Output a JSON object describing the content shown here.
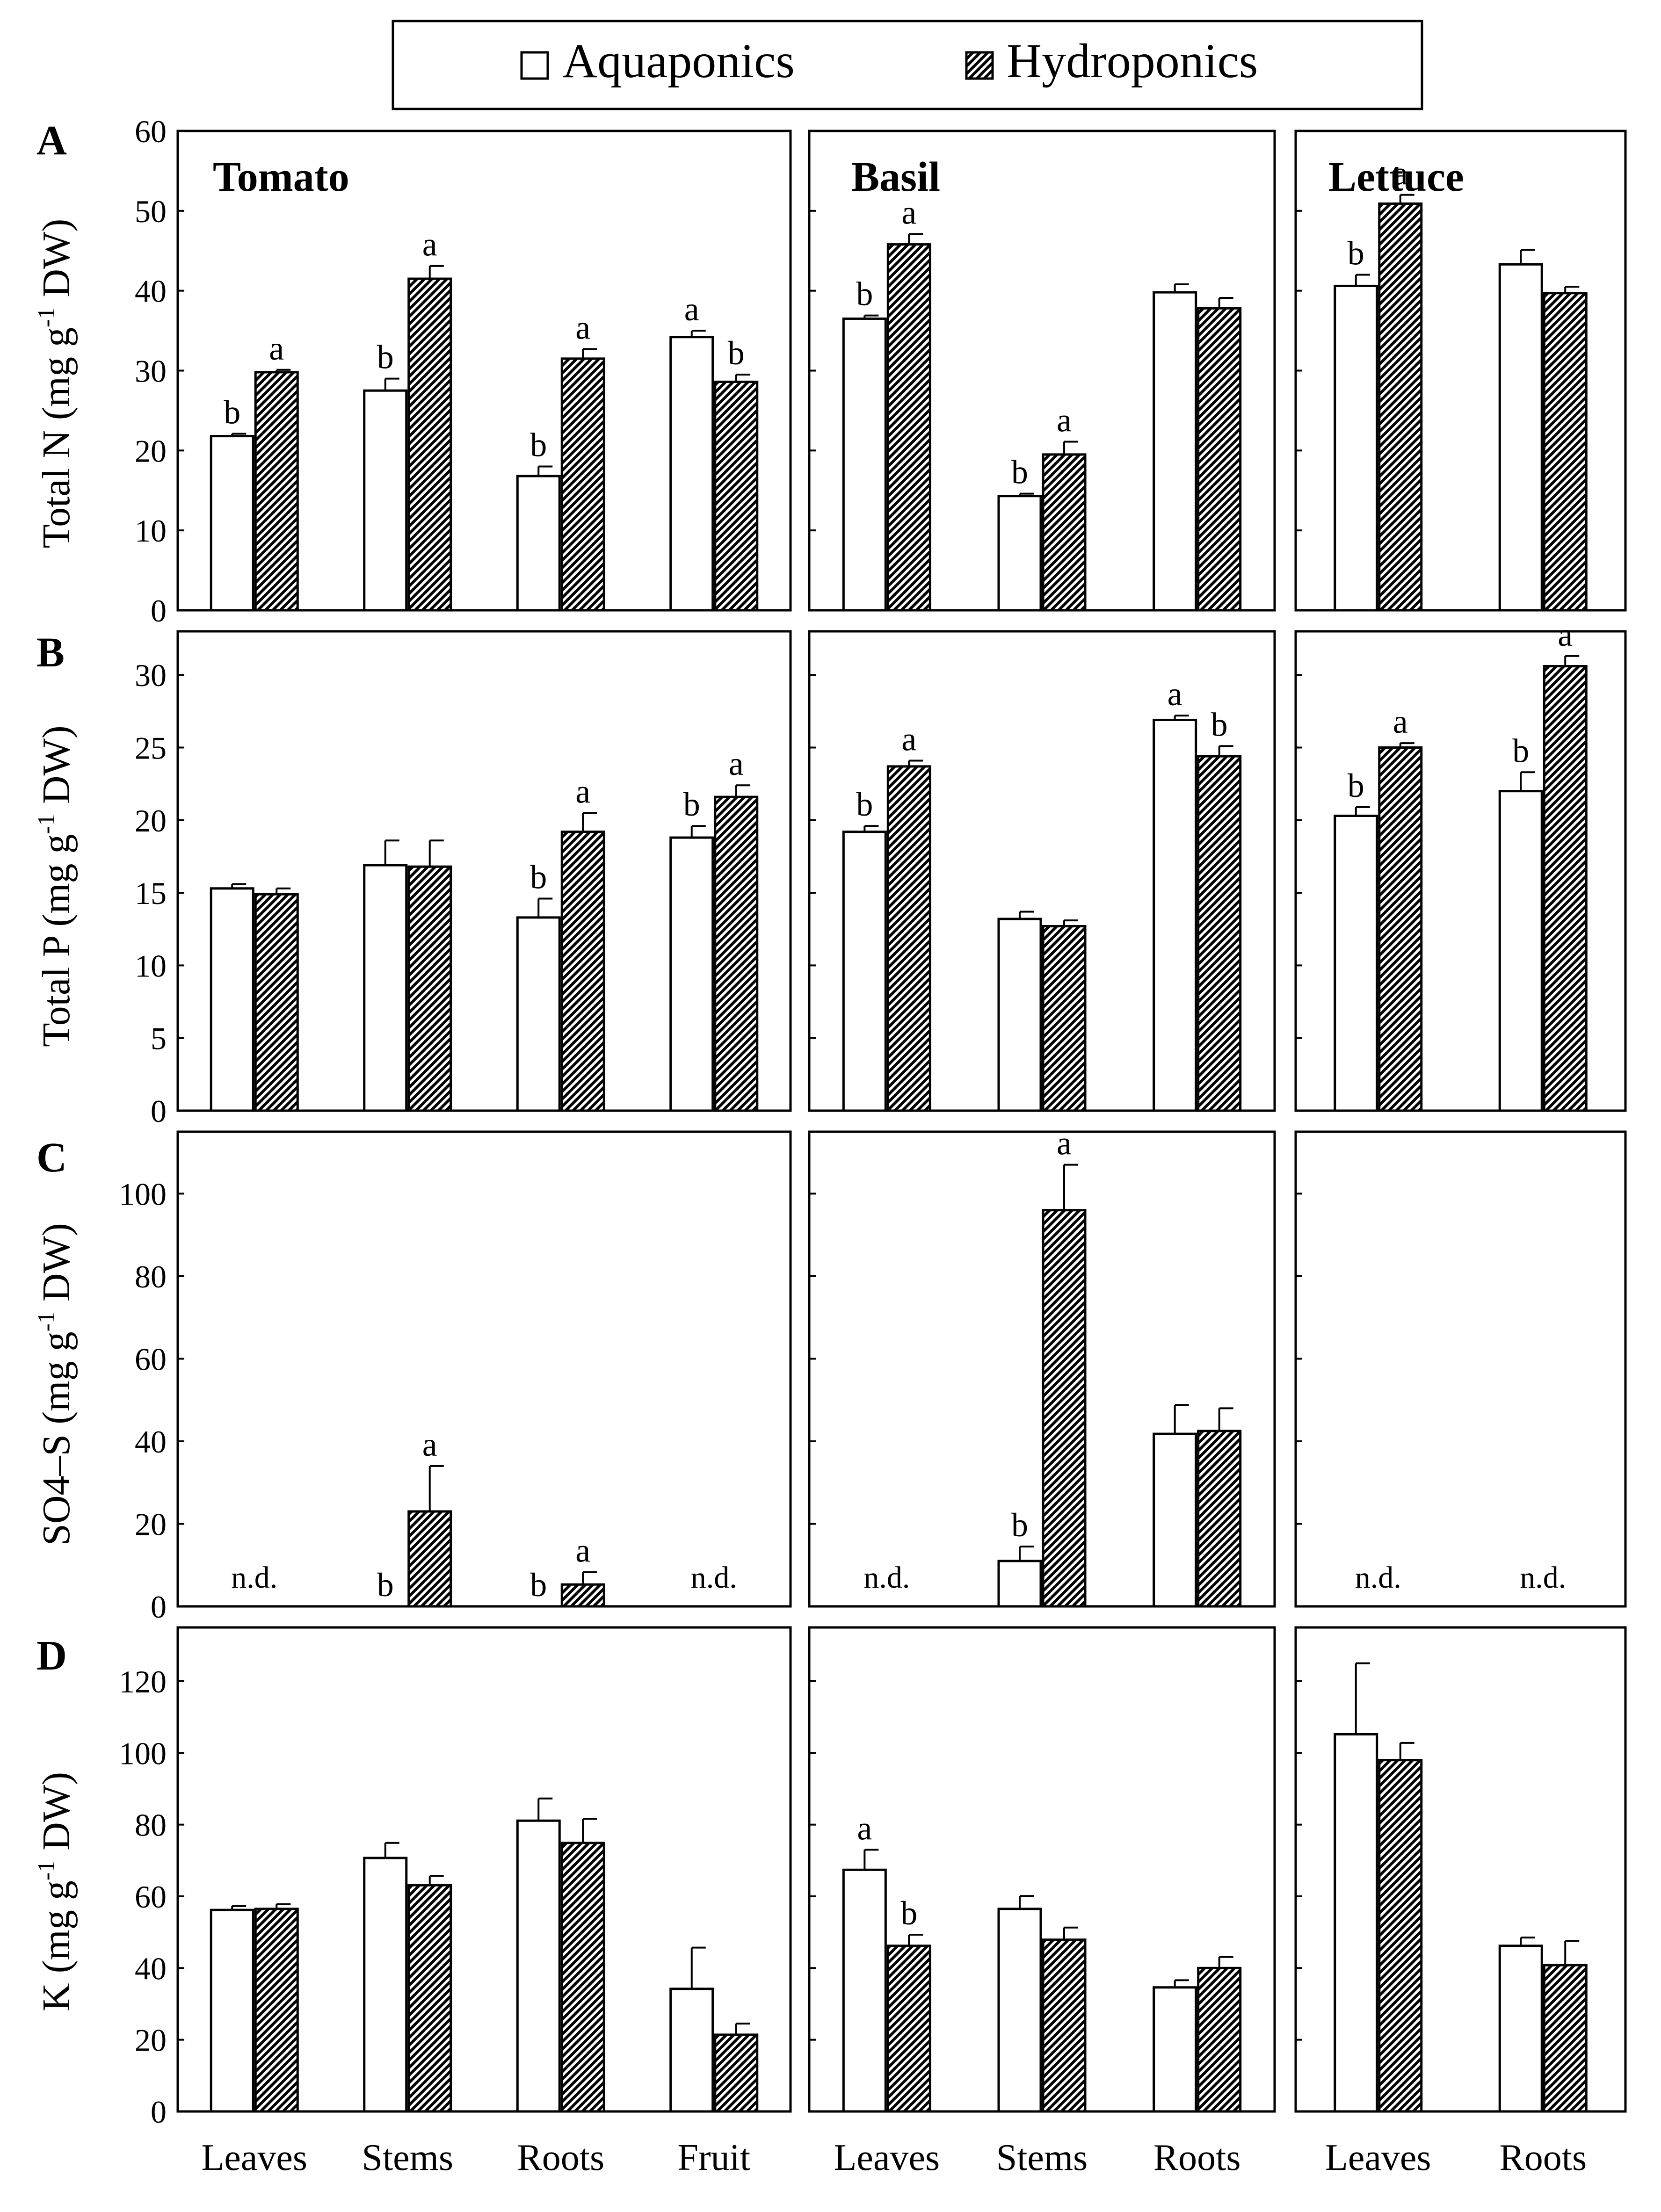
{
  "legend": {
    "series": [
      {
        "name": "Aquaponics",
        "pattern": "open"
      },
      {
        "name": "Hydroponics",
        "pattern": "hatched"
      }
    ]
  },
  "rows": [
    {
      "letter": "A",
      "ylabel": "Total N (mg g-1 DW)",
      "ylabel_main": "Total N (mg g",
      "ylabel_sup": "-1",
      "ylabel_tail": " DW)",
      "ylim": [
        0,
        60
      ],
      "ticks": [
        0,
        10,
        20,
        30,
        40,
        50,
        60
      ]
    },
    {
      "letter": "B",
      "ylabel": "Total P (mg g-1 DW)",
      "ylabel_main": "Total P (mg g",
      "ylabel_sup": "-1",
      "ylabel_tail": " DW)",
      "ylim": [
        0,
        33
      ],
      "ticks": [
        0,
        5,
        10,
        15,
        20,
        25,
        30
      ]
    },
    {
      "letter": "C",
      "ylabel": "SO4–S (mg g-1 DW)",
      "ylabel_main": "SO4–S (mg g",
      "ylabel_sup": "-1",
      "ylabel_tail": " DW)",
      "ylim": [
        0,
        115
      ],
      "ticks": [
        0,
        20,
        40,
        60,
        80,
        100
      ]
    },
    {
      "letter": "D",
      "ylabel": "K (mg g-1 DW)",
      "ylabel_main": "K (mg g",
      "ylabel_sup": "-1",
      "ylabel_tail": " DW)",
      "ylim": [
        0,
        135
      ],
      "ticks": [
        0,
        20,
        40,
        60,
        80,
        100,
        120
      ]
    }
  ],
  "crops": [
    {
      "name": "Tomato",
      "categories": [
        "Leaves",
        "Stems",
        "Roots",
        "Fruit"
      ]
    },
    {
      "name": "Basil",
      "categories": [
        "Leaves",
        "Stems",
        "Roots"
      ]
    },
    {
      "name": "Lettuce",
      "categories": [
        "Leaves",
        "Roots"
      ]
    }
  ],
  "chart_data": [
    {
      "type": "bar",
      "title": "Tomato",
      "panel": "A",
      "ylabel": "Total N (mg g-1 DW)",
      "ylim": [
        0,
        60
      ],
      "categories": [
        "Leaves",
        "Stems",
        "Roots",
        "Fruit"
      ],
      "series": [
        {
          "name": "Aquaponics",
          "values": [
            21.8,
            27.5,
            16.8,
            34.2
          ],
          "errors": [
            0.3,
            1.5,
            1.2,
            0.8
          ],
          "letters": [
            "b",
            "b",
            "b",
            "a"
          ]
        },
        {
          "name": "Hydroponics",
          "values": [
            29.8,
            41.5,
            31.5,
            28.6
          ],
          "errors": [
            0.3,
            1.6,
            1.2,
            0.9
          ],
          "letters": [
            "a",
            "a",
            "a",
            "b"
          ]
        }
      ]
    },
    {
      "type": "bar",
      "title": "Basil",
      "panel": "A",
      "ylabel": "Total N (mg g-1 DW)",
      "ylim": [
        0,
        60
      ],
      "categories": [
        "Leaves",
        "Stems",
        "Roots"
      ],
      "series": [
        {
          "name": "Aquaponics",
          "values": [
            36.5,
            14.3,
            39.8
          ],
          "errors": [
            0.4,
            0.3,
            1.0
          ],
          "letters": [
            "b",
            "b",
            ""
          ]
        },
        {
          "name": "Hydroponics",
          "values": [
            45.8,
            19.5,
            37.8
          ],
          "errors": [
            1.3,
            1.6,
            1.3
          ],
          "letters": [
            "a",
            "a",
            ""
          ]
        }
      ]
    },
    {
      "type": "bar",
      "title": "Lettuce",
      "panel": "A",
      "ylabel": "Total N (mg g-1 DW)",
      "ylim": [
        0,
        60
      ],
      "categories": [
        "Leaves",
        "Roots"
      ],
      "series": [
        {
          "name": "Aquaponics",
          "values": [
            40.6,
            43.3
          ],
          "errors": [
            1.4,
            1.8
          ],
          "letters": [
            "b",
            ""
          ]
        },
        {
          "name": "Hydroponics",
          "values": [
            50.9,
            39.7
          ],
          "errors": [
            1.1,
            0.8
          ],
          "letters": [
            "a",
            ""
          ]
        }
      ]
    },
    {
      "type": "bar",
      "title": "Tomato",
      "panel": "B",
      "ylabel": "Total P (mg g-1 DW)",
      "ylim": [
        0,
        33
      ],
      "categories": [
        "Leaves",
        "Stems",
        "Roots",
        "Fruit"
      ],
      "series": [
        {
          "name": "Aquaponics",
          "values": [
            15.3,
            16.9,
            13.3,
            18.8
          ],
          "errors": [
            0.3,
            1.7,
            1.3,
            0.8
          ],
          "letters": [
            "",
            "",
            "b",
            "b"
          ]
        },
        {
          "name": "Hydroponics",
          "values": [
            14.9,
            16.8,
            19.2,
            21.6
          ],
          "errors": [
            0.4,
            1.8,
            1.3,
            0.8
          ],
          "letters": [
            "",
            "",
            "a",
            "a"
          ]
        }
      ]
    },
    {
      "type": "bar",
      "title": "Basil",
      "panel": "B",
      "ylabel": "Total P (mg g-1 DW)",
      "ylim": [
        0,
        33
      ],
      "categories": [
        "Leaves",
        "Stems",
        "Roots"
      ],
      "series": [
        {
          "name": "Aquaponics",
          "values": [
            19.2,
            13.2,
            26.9
          ],
          "errors": [
            0.4,
            0.5,
            0.3
          ],
          "letters": [
            "b",
            "",
            "a"
          ]
        },
        {
          "name": "Hydroponics",
          "values": [
            23.7,
            12.7,
            24.4
          ],
          "errors": [
            0.4,
            0.4,
            0.7
          ],
          "letters": [
            "a",
            "",
            "b"
          ]
        }
      ]
    },
    {
      "type": "bar",
      "title": "Lettuce",
      "panel": "B",
      "ylabel": "Total P (mg g-1 DW)",
      "ylim": [
        0,
        33
      ],
      "categories": [
        "Leaves",
        "Roots"
      ],
      "series": [
        {
          "name": "Aquaponics",
          "values": [
            20.3,
            22.0
          ],
          "errors": [
            0.6,
            1.3
          ],
          "letters": [
            "b",
            "b"
          ]
        },
        {
          "name": "Hydroponics",
          "values": [
            25.0,
            30.6
          ],
          "errors": [
            0.3,
            0.7
          ],
          "letters": [
            "a",
            "a"
          ]
        }
      ]
    },
    {
      "type": "bar",
      "title": "Tomato",
      "panel": "C",
      "ylabel": "SO4–S (mg g-1 DW)",
      "ylim": [
        0,
        115
      ],
      "categories": [
        "Leaves",
        "Stems",
        "Roots",
        "Fruit"
      ],
      "series": [
        {
          "name": "Aquaponics",
          "values": [
            null,
            0,
            0,
            null
          ],
          "errors": [
            null,
            null,
            null,
            null
          ],
          "letters": [
            "",
            "b",
            "b",
            ""
          ]
        },
        {
          "name": "Hydroponics",
          "values": [
            null,
            23,
            5.3,
            null
          ],
          "errors": [
            null,
            11,
            3,
            null
          ],
          "letters": [
            "",
            "a",
            "a",
            ""
          ]
        }
      ],
      "group_notes": [
        "n.d.",
        "",
        "",
        "n.d."
      ]
    },
    {
      "type": "bar",
      "title": "Basil",
      "panel": "C",
      "ylabel": "SO4–S (mg g-1 DW)",
      "ylim": [
        0,
        115
      ],
      "categories": [
        "Leaves",
        "Stems",
        "Roots"
      ],
      "series": [
        {
          "name": "Aquaponics",
          "values": [
            null,
            11,
            41.8
          ],
          "errors": [
            null,
            3.5,
            7
          ],
          "letters": [
            "",
            "b",
            ""
          ]
        },
        {
          "name": "Hydroponics",
          "values": [
            null,
            96,
            42.5
          ],
          "errors": [
            null,
            11,
            5.5
          ],
          "letters": [
            "",
            "a",
            ""
          ]
        }
      ],
      "group_notes": [
        "n.d.",
        "",
        ""
      ]
    },
    {
      "type": "bar",
      "title": "Lettuce",
      "panel": "C",
      "ylabel": "SO4–S (mg g-1 DW)",
      "ylim": [
        0,
        115
      ],
      "categories": [
        "Leaves",
        "Roots"
      ],
      "series": [
        {
          "name": "Aquaponics",
          "values": [
            null,
            null
          ],
          "errors": [
            null,
            null
          ],
          "letters": [
            "",
            ""
          ]
        },
        {
          "name": "Hydroponics",
          "values": [
            null,
            null
          ],
          "errors": [
            null,
            null
          ],
          "letters": [
            "",
            ""
          ]
        }
      ],
      "group_notes": [
        "n.d.",
        "n.d."
      ]
    },
    {
      "type": "bar",
      "title": "Tomato",
      "panel": "D",
      "ylabel": "K (mg g-1 DW)",
      "ylim": [
        0,
        135
      ],
      "categories": [
        "Leaves",
        "Stems",
        "Roots",
        "Fruit"
      ],
      "series": [
        {
          "name": "Aquaponics",
          "values": [
            56.2,
            70.7,
            81.1,
            34.2
          ],
          "errors": [
            1.1,
            4.2,
            6.2,
            11.5
          ],
          "letters": [
            "",
            "",
            "",
            ""
          ]
        },
        {
          "name": "Hydroponics",
          "values": [
            56.5,
            63.1,
            74.9,
            21.4
          ],
          "errors": [
            1.3,
            2.6,
            6.7,
            3.1
          ],
          "letters": [
            "",
            "",
            "",
            ""
          ]
        }
      ]
    },
    {
      "type": "bar",
      "title": "Basil",
      "panel": "D",
      "ylabel": "K (mg g-1 DW)",
      "ylim": [
        0,
        135
      ],
      "categories": [
        "Leaves",
        "Stems",
        "Roots"
      ],
      "series": [
        {
          "name": "Aquaponics",
          "values": [
            67.4,
            56.5,
            34.6
          ],
          "errors": [
            5.6,
            3.6,
            2.0
          ],
          "letters": [
            "a",
            "",
            ""
          ]
        },
        {
          "name": "Hydroponics",
          "values": [
            46.2,
            47.9,
            40.0
          ],
          "errors": [
            3.1,
            3.4,
            3.1
          ],
          "letters": [
            "b",
            "",
            ""
          ]
        }
      ]
    },
    {
      "type": "bar",
      "title": "Lettuce",
      "panel": "D",
      "ylabel": "K (mg g-1 DW)",
      "ylim": [
        0,
        135
      ],
      "categories": [
        "Leaves",
        "Roots"
      ],
      "series": [
        {
          "name": "Aquaponics",
          "values": [
            105.2,
            46.2
          ],
          "errors": [
            19.8,
            2.3
          ],
          "letters": [
            "",
            ""
          ]
        },
        {
          "name": "Hydroponics",
          "values": [
            98.0,
            40.8
          ],
          "errors": [
            4.8,
            6.8
          ],
          "letters": [
            "",
            ""
          ]
        }
      ]
    }
  ]
}
